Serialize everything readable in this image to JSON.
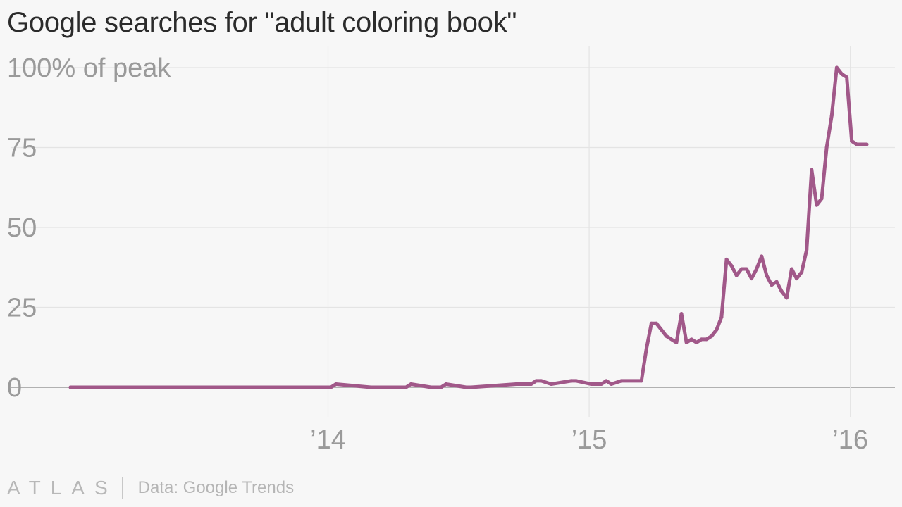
{
  "title": "Google searches for \"adult coloring book\"",
  "footer": {
    "brand": "ATLAS",
    "source": "Data: Google Trends"
  },
  "colors": {
    "line": "#a15889",
    "grid": "#e4e4e4",
    "axis": "#9a9a9a",
    "text": "#9a9a9a",
    "background": "#f7f7f7"
  },
  "chart_data": {
    "type": "line",
    "title": "Google searches for \"adult coloring book\"",
    "xlabel": "",
    "ylabel": "",
    "ylim": [
      0,
      100
    ],
    "yticks": [
      0,
      25,
      50,
      75,
      100
    ],
    "ytick_labels": [
      "0",
      "25",
      "50",
      "75",
      "100% of peak"
    ],
    "xlim": [
      "2013-01-06",
      "2016-01-24"
    ],
    "xticks": [
      "2014-01-01",
      "2015-01-01",
      "2016-01-01"
    ],
    "xtick_labels": [
      "’14",
      "’15",
      "’16"
    ],
    "grid": true,
    "series": [
      {
        "x": [
          "2013-01-06",
          "2013-04-28",
          "2013-08-25",
          "2013-12-22",
          "2014-01-05",
          "2014-01-12",
          "2014-03-02",
          "2014-04-13",
          "2014-04-20",
          "2014-04-27",
          "2014-05-25",
          "2014-06-01",
          "2014-06-08",
          "2014-06-15",
          "2014-07-13",
          "2014-07-20",
          "2014-09-21",
          "2014-09-28",
          "2014-10-12",
          "2014-10-19",
          "2014-10-26",
          "2014-11-09",
          "2014-12-07",
          "2014-12-14",
          "2015-01-04",
          "2015-01-18",
          "2015-01-25",
          "2015-02-01",
          "2015-02-15",
          "2015-03-15",
          "2015-03-22",
          "2015-03-29",
          "2015-04-05",
          "2015-04-12",
          "2015-04-19",
          "2015-05-03",
          "2015-05-10",
          "2015-05-17",
          "2015-05-24",
          "2015-05-31",
          "2015-06-07",
          "2015-06-14",
          "2015-06-21",
          "2015-06-28",
          "2015-07-05",
          "2015-07-12",
          "2015-07-19",
          "2015-07-26",
          "2015-08-02",
          "2015-08-09",
          "2015-08-16",
          "2015-08-23",
          "2015-08-30",
          "2015-09-06",
          "2015-09-13",
          "2015-09-20",
          "2015-09-27",
          "2015-10-04",
          "2015-10-11",
          "2015-10-18",
          "2015-10-25",
          "2015-11-01",
          "2015-11-08",
          "2015-11-15",
          "2015-11-22",
          "2015-11-29",
          "2015-12-06",
          "2015-12-13",
          "2015-12-20",
          "2015-12-27",
          "2016-01-03",
          "2016-01-10",
          "2016-01-17",
          "2016-01-24"
        ],
        "y": [
          0,
          0,
          0,
          0,
          0,
          1,
          0,
          0,
          0,
          1,
          0,
          0,
          0,
          1,
          0,
          0,
          1,
          1,
          1,
          2,
          2,
          1,
          2,
          2,
          1,
          1,
          2,
          1,
          2,
          2,
          12,
          20,
          20,
          18,
          16,
          14,
          23,
          14,
          15,
          14,
          15,
          15,
          16,
          18,
          22,
          40,
          38,
          35,
          37,
          37,
          34,
          37,
          41,
          35,
          32,
          33,
          30,
          28,
          37,
          34,
          36,
          43,
          68,
          57,
          59,
          75,
          85,
          100,
          98,
          97,
          77,
          76,
          76,
          76
        ]
      }
    ]
  }
}
